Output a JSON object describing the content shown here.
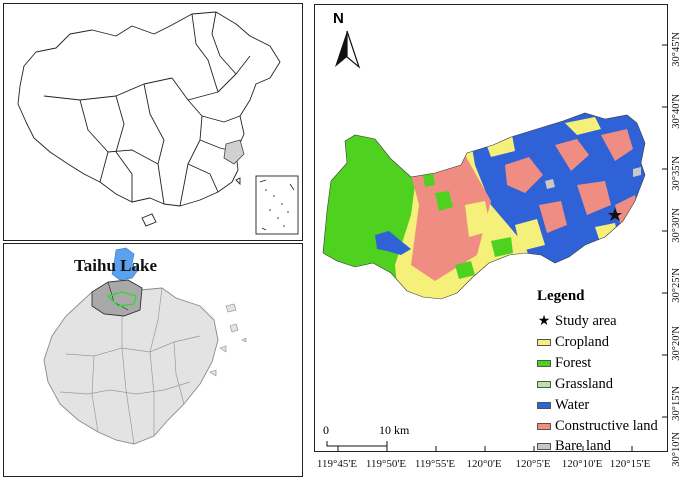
{
  "inset_zhejiang": {
    "lake_label": "Taihu Lake"
  },
  "main_map": {
    "north_arrow_label": "N",
    "scale_bar": {
      "start": "0",
      "end": "10 km"
    },
    "legend": {
      "title": "Legend",
      "items": [
        {
          "label": "Study area",
          "symbol": "star-icon",
          "color": "#111111"
        },
        {
          "label": "Cropland",
          "color": "#f5f07a"
        },
        {
          "label": "Forest",
          "color": "#4fd11f"
        },
        {
          "label": "Grassland",
          "color": "#b8e0a8"
        },
        {
          "label": "Water",
          "color": "#2f62d6"
        },
        {
          "label": "Constructive land",
          "color": "#f08d83"
        },
        {
          "label": "Bare land",
          "color": "#c8c8c8"
        }
      ]
    },
    "longitude_labels": [
      "119°45'E",
      "119°50'E",
      "119°55'E",
      "120°0'E",
      "120°5'E",
      "120°10'E",
      "120°15'E"
    ],
    "latitude_labels": [
      "30°45'N",
      "30°40'N",
      "30°35'N",
      "30°30'N",
      "30°25'N",
      "30°20'N",
      "30°15'N",
      "30°10'N"
    ]
  }
}
